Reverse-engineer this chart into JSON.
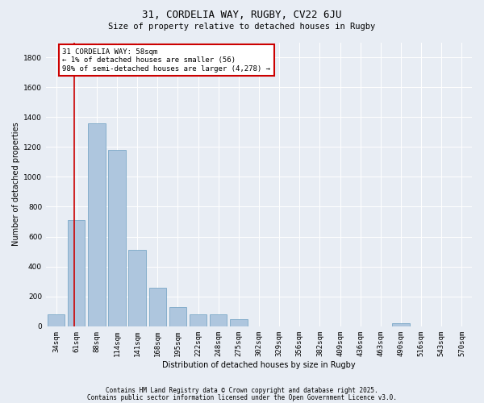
{
  "title1": "31, CORDELIA WAY, RUGBY, CV22 6JU",
  "title2": "Size of property relative to detached houses in Rugby",
  "xlabel": "Distribution of detached houses by size in Rugby",
  "ylabel": "Number of detached properties",
  "bar_labels": [
    "34sqm",
    "61sqm",
    "88sqm",
    "114sqm",
    "141sqm",
    "168sqm",
    "195sqm",
    "222sqm",
    "248sqm",
    "275sqm",
    "302sqm",
    "329sqm",
    "356sqm",
    "382sqm",
    "409sqm",
    "436sqm",
    "463sqm",
    "490sqm",
    "516sqm",
    "543sqm",
    "570sqm"
  ],
  "bar_values": [
    80,
    710,
    1360,
    1180,
    510,
    260,
    130,
    80,
    80,
    50,
    0,
    0,
    0,
    0,
    0,
    0,
    0,
    20,
    0,
    0,
    0
  ],
  "bar_color": "#aec6de",
  "bar_edge_color": "#6a9ec0",
  "background_color": "#e8edf4",
  "grid_color": "#ffffff",
  "annotation_text": "31 CORDELIA WAY: 58sqm\n← 1% of detached houses are smaller (56)\n98% of semi-detached houses are larger (4,278) →",
  "annotation_box_color": "#ffffff",
  "annotation_box_edge_color": "#cc0000",
  "marker_line_color": "#cc0000",
  "ylim": [
    0,
    1900
  ],
  "yticks": [
    0,
    200,
    400,
    600,
    800,
    1000,
    1200,
    1400,
    1600,
    1800
  ],
  "footer1": "Contains HM Land Registry data © Crown copyright and database right 2025.",
  "footer2": "Contains public sector information licensed under the Open Government Licence v3.0.",
  "title1_fontsize": 9,
  "title2_fontsize": 7.5,
  "axis_label_fontsize": 7,
  "tick_fontsize": 6.5,
  "annotation_fontsize": 6.5,
  "footer_fontsize": 5.5
}
